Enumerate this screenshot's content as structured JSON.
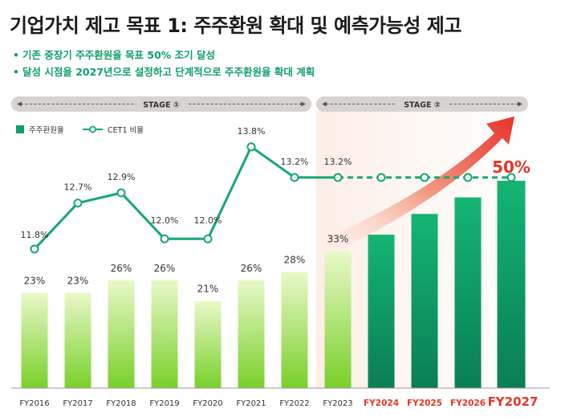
{
  "page": {
    "title": "기업가치 제고 목표 1: 주주환원 확대 및 예측가능성 제고",
    "bullets": [
      "기존 중장기 주주환원율 목표 50% 조기 달성",
      "달성 시점을 2027년으로 설정하고 단계적으로 주주환원율 확대 계획"
    ],
    "stage1_label": "STAGE ①",
    "stage2_label": "STAGE ②"
  },
  "chart_data": {
    "type": "bar",
    "categories": [
      "FY2016",
      "FY2017",
      "FY2018",
      "FY2019",
      "FY2020",
      "FY2021",
      "FY2022",
      "FY2023",
      "FY2024",
      "FY2025",
      "FY2026",
      "FY2027"
    ],
    "series": [
      {
        "name": "주주환원율",
        "values": [
          23,
          23,
          26,
          26,
          21,
          26,
          28,
          33,
          37,
          42,
          46,
          50
        ],
        "labels": [
          "23%",
          "23%",
          "26%",
          "26%",
          "21%",
          "26%",
          "28%",
          "33%",
          "",
          "",
          "",
          "50%"
        ]
      },
      {
        "name": "CET1 비율",
        "chart_type": "line",
        "values": [
          11.8,
          12.7,
          12.9,
          12.0,
          12.0,
          13.8,
          13.2,
          13.2,
          13.2,
          13.2,
          13.2,
          13.2
        ],
        "labels": [
          "11.8%",
          "12.7%",
          "12.9%",
          "12.0%",
          "12.0%",
          "13.8%",
          "13.2%",
          "13.2%",
          "",
          "",
          "",
          ""
        ],
        "projected_from_index": 7
      }
    ],
    "highlight_categories": [
      "FY2024",
      "FY2025",
      "FY2026",
      "FY2027"
    ],
    "legend_position": "top-left",
    "grid": false,
    "colors": {
      "bar_actual": "#7ed321",
      "bar_target": "#0c9f6a",
      "line": "#14a86f",
      "highlight_text": "#e53528",
      "stage_bar": "#d6d3d1",
      "forecast_band": "#fdeee6",
      "arrow": "#e8332a"
    }
  }
}
